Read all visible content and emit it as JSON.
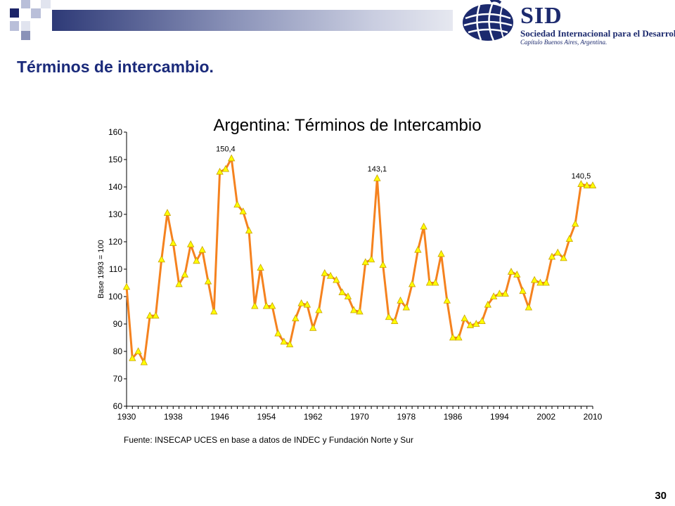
{
  "slide": {
    "title": "Términos de intercambio.",
    "page_number": "30"
  },
  "logo": {
    "name": "SID",
    "subtitle": "Sociedad Internacional para el Desarrollo",
    "chapter": "Capítulo Buenos Aires, Argentina."
  },
  "colors": {
    "title": "#1a2a7a",
    "series_line": "#f5821f",
    "series_marker": "#ffff00",
    "marker_edge": "#c8a000",
    "logo": "#1c2a6e"
  },
  "chart_data": {
    "type": "line",
    "title": "Argentina: Términos de Intercambio",
    "ylabel": "Base 1993 = 100",
    "xlabel": "",
    "source": "Fuente: INSECAP UCES en base a datos de INDEC y Fundación Norte y Sur",
    "ylim": [
      60,
      160
    ],
    "yticks": [
      60,
      70,
      80,
      90,
      100,
      110,
      120,
      130,
      140,
      150,
      160
    ],
    "xlim": [
      1930,
      2010
    ],
    "xticks": [
      1930,
      1938,
      1946,
      1954,
      1962,
      1970,
      1978,
      1986,
      1994,
      2002,
      2010
    ],
    "grid": false,
    "legend": "none",
    "annotations": [
      {
        "x": 1947,
        "y": 150.4,
        "text": "150,4"
      },
      {
        "x": 1973,
        "y": 143.1,
        "text": "143,1"
      },
      {
        "x": 2008,
        "y": 140.5,
        "text": "140,5"
      }
    ],
    "series": [
      {
        "x": [
          1930,
          1931,
          1932,
          1933,
          1934,
          1935,
          1936,
          1937,
          1938,
          1939,
          1940,
          1941,
          1942,
          1943,
          1944,
          1945,
          1946,
          1947,
          1948,
          1949,
          1950,
          1951,
          1952,
          1953,
          1954,
          1955,
          1956,
          1957,
          1958,
          1959,
          1960,
          1961,
          1962,
          1963,
          1964,
          1965,
          1966,
          1967,
          1968,
          1969,
          1970,
          1971,
          1972,
          1973,
          1974,
          1975,
          1976,
          1977,
          1978,
          1979,
          1980,
          1981,
          1982,
          1983,
          1984,
          1985,
          1986,
          1987,
          1988,
          1989,
          1990,
          1991,
          1992,
          1993,
          1994,
          1995,
          1996,
          1997,
          1998,
          1999,
          2000,
          2001,
          2002,
          2003,
          2004,
          2005,
          2006,
          2007,
          2008,
          2009,
          2010
        ],
        "values": [
          103.5,
          77.5,
          80,
          76,
          93,
          93,
          113.5,
          130.5,
          119.5,
          104.5,
          108,
          119,
          113,
          117,
          105.5,
          94.5,
          145.5,
          146.5,
          150.4,
          133.5,
          131,
          124,
          96.5,
          110.5,
          96.5,
          96.5,
          86.5,
          83.5,
          82.5,
          92,
          97.5,
          97,
          88.5,
          95,
          108.5,
          107.5,
          106,
          101.5,
          100,
          95,
          94.5,
          112.5,
          113.5,
          143.1,
          111.5,
          92.5,
          91,
          98.5,
          96,
          104.5,
          117,
          125.5,
          105,
          105,
          115.5,
          98.5,
          85,
          85,
          92,
          89.5,
          90,
          91,
          97,
          100,
          101,
          101,
          109,
          108,
          102,
          96,
          106,
          105,
          105,
          114.5,
          116,
          114,
          121,
          126.5,
          141,
          140.5,
          140.5
        ]
      }
    ]
  }
}
